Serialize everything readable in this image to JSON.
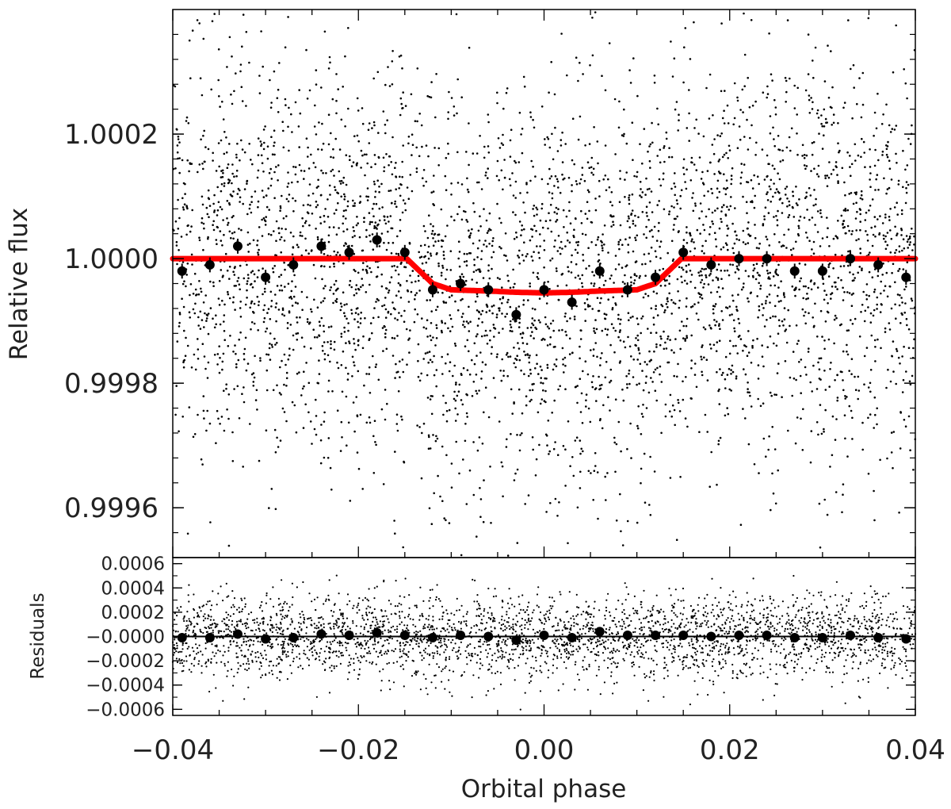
{
  "chart_data": [
    {
      "type": "scatter",
      "panel": "main",
      "xlabel": "Orbital phase",
      "ylabel": "Relative flux",
      "xlim": [
        -0.04,
        0.04
      ],
      "ylim": [
        0.99952,
        1.0004
      ],
      "xticks": [
        -0.04,
        -0.02,
        0.0,
        0.02,
        0.04
      ],
      "xtick_labels": [
        "−0.04",
        "−0.02",
        "0.00",
        "0.02",
        "0.04"
      ],
      "yticks": [
        0.9996,
        0.9998,
        1.0,
        1.0002
      ],
      "ytick_labels": [
        "0.9996",
        "0.9998",
        "1.0000",
        "1.0002"
      ],
      "grid": false,
      "series": [
        {
          "style": "dots",
          "color": "#000000",
          "n_points": 4200,
          "x_range": [
            -0.04,
            0.04
          ],
          "y_center": 1.0,
          "y_scatter": 0.00016,
          "note_visual": "unbinned photometry"
        },
        {
          "style": "filled-circles-with-errorbars",
          "color": "#000000",
          "x": [
            -0.039,
            -0.036,
            -0.033,
            -0.03,
            -0.027,
            -0.024,
            -0.021,
            -0.018,
            -0.015,
            -0.012,
            -0.009,
            -0.006,
            -0.003,
            0.0,
            0.003,
            0.006,
            0.009,
            0.012,
            0.015,
            0.018,
            0.021,
            0.024,
            0.027,
            0.03,
            0.033,
            0.036,
            0.039
          ],
          "y": [
            0.99998,
            0.99999,
            1.00002,
            0.99997,
            0.99999,
            1.00002,
            1.00001,
            1.00003,
            1.00001,
            0.99995,
            0.99996,
            0.99995,
            0.99991,
            0.99995,
            0.99993,
            0.99998,
            0.99995,
            0.99997,
            1.00001,
            0.99999,
            1.0,
            1.0,
            0.99998,
            0.99998,
            1.0,
            0.99999,
            0.99997
          ],
          "yerr": 1.2e-05
        },
        {
          "style": "line",
          "color": "#ff0000",
          "x": [
            -0.04,
            -0.0148,
            -0.012,
            -0.01,
            -0.006,
            -0.003,
            0.0,
            0.003,
            0.006,
            0.01,
            0.012,
            0.0148,
            0.04
          ],
          "y": [
            1.0,
            1.0,
            0.99996,
            0.99995,
            0.999948,
            0.999946,
            0.999945,
            0.999946,
            0.999948,
            0.99995,
            0.99996,
            1.0,
            1.0
          ]
        }
      ]
    },
    {
      "type": "scatter",
      "panel": "residuals",
      "xlabel": "Orbital phase",
      "ylabel": "Residuals",
      "xlim": [
        -0.04,
        0.04
      ],
      "ylim": [
        -0.00065,
        0.00065
      ],
      "yticks": [
        -0.0006,
        -0.0004,
        -0.0002,
        0.0,
        0.0002,
        0.0004,
        0.0006
      ],
      "ytick_labels": [
        "−0.0006",
        "−0.0004",
        "−0.0002",
        "−0.0000",
        "0.0002",
        "0.0004",
        "0.0006"
      ],
      "grid": false,
      "series": [
        {
          "style": "dots",
          "color": "#000000",
          "n_points": 3200,
          "x_range": [
            -0.04,
            0.04
          ],
          "y_center": 0.0,
          "y_scatter": 0.00017
        },
        {
          "style": "filled-circles",
          "color": "#000000",
          "x": [
            -0.039,
            -0.036,
            -0.033,
            -0.03,
            -0.027,
            -0.024,
            -0.021,
            -0.018,
            -0.015,
            -0.012,
            -0.009,
            -0.006,
            -0.003,
            0.0,
            0.003,
            0.006,
            0.009,
            0.012,
            0.015,
            0.018,
            0.021,
            0.024,
            0.027,
            0.03,
            0.033,
            0.036,
            0.039
          ],
          "y": [
            -1e-05,
            -1e-05,
            2e-05,
            -2e-05,
            -1e-05,
            2e-05,
            1e-05,
            3e-05,
            1e-05,
            -1e-05,
            1e-05,
            0.0,
            -3e-05,
            1e-05,
            -1e-05,
            4e-05,
            1e-05,
            1e-05,
            1e-05,
            0.0,
            1e-05,
            1e-05,
            -1e-05,
            -1e-05,
            1e-05,
            -1e-05,
            -2e-05
          ]
        },
        {
          "style": "line",
          "color": "#000000",
          "x": [
            -0.04,
            0.04
          ],
          "y": [
            0.0,
            0.0
          ]
        }
      ]
    }
  ]
}
